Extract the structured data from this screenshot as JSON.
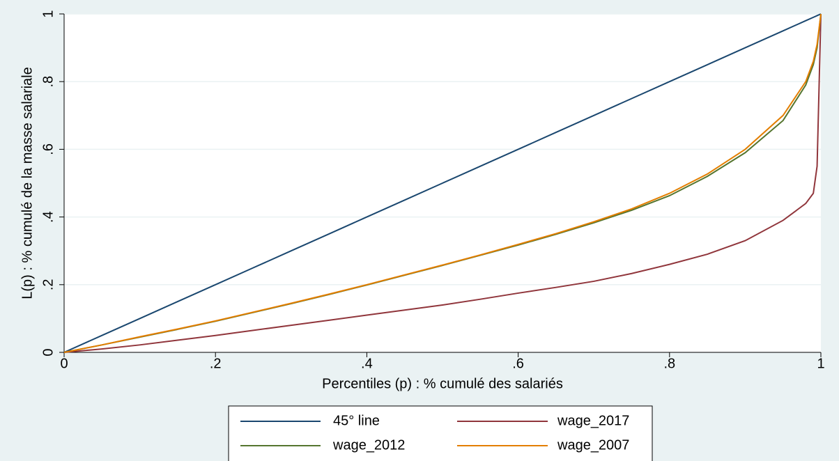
{
  "chart_data": {
    "type": "line",
    "x_label": "Percentiles (p) : % cumulé des salariés",
    "y_label": "L(p) : % cumulé de la masse salariale",
    "x": [
      0,
      0.05,
      0.1,
      0.15,
      0.2,
      0.25,
      0.3,
      0.35,
      0.4,
      0.45,
      0.5,
      0.55,
      0.6,
      0.65,
      0.7,
      0.75,
      0.8,
      0.85,
      0.9,
      0.95,
      0.98,
      0.99,
      0.995,
      1
    ],
    "series": [
      {
        "name": "45° line",
        "color": "#1a476f",
        "values": [
          0,
          0.05,
          0.1,
          0.15,
          0.2,
          0.25,
          0.3,
          0.35,
          0.4,
          0.45,
          0.5,
          0.55,
          0.6,
          0.65,
          0.7,
          0.75,
          0.8,
          0.85,
          0.9,
          0.95,
          0.98,
          0.99,
          0.995,
          1
        ]
      },
      {
        "name": "wage_2017",
        "color": "#90353b",
        "values": [
          0,
          0.01,
          0.022,
          0.036,
          0.05,
          0.065,
          0.08,
          0.095,
          0.11,
          0.125,
          0.14,
          0.157,
          0.175,
          0.192,
          0.21,
          0.233,
          0.26,
          0.29,
          0.33,
          0.39,
          0.44,
          0.47,
          0.55,
          1
        ]
      },
      {
        "name": "wage_2012",
        "color": "#55752f",
        "values": [
          0,
          0.022,
          0.045,
          0.068,
          0.092,
          0.118,
          0.144,
          0.171,
          0.199,
          0.228,
          0.257,
          0.287,
          0.317,
          0.349,
          0.383,
          0.42,
          0.463,
          0.52,
          0.59,
          0.685,
          0.79,
          0.85,
          0.9,
          1
        ]
      },
      {
        "name": "wage_2007",
        "color": "#e37e00",
        "values": [
          0,
          0.022,
          0.046,
          0.069,
          0.093,
          0.119,
          0.145,
          0.172,
          0.2,
          0.229,
          0.258,
          0.288,
          0.319,
          0.351,
          0.386,
          0.424,
          0.47,
          0.527,
          0.6,
          0.7,
          0.8,
          0.86,
          0.91,
          1
        ]
      }
    ],
    "xlim": [
      0,
      1
    ],
    "xticks": [
      0,
      {
        "value": 0.2,
        "label": ".2"
      },
      {
        "value": 0.4,
        "label": ".4"
      },
      {
        "value": 0.6,
        "label": ".6"
      },
      {
        "value": 0.8,
        "label": ".8"
      },
      1
    ],
    "ylim": [
      0,
      1
    ],
    "yticks": [
      0,
      {
        "value": 0.2,
        "label": ".2"
      },
      {
        "value": 0.4,
        "label": ".4"
      },
      {
        "value": 0.6,
        "label": ".6"
      },
      {
        "value": 0.8,
        "label": ".8"
      },
      1
    ],
    "grid": true,
    "legend": "bottom"
  }
}
